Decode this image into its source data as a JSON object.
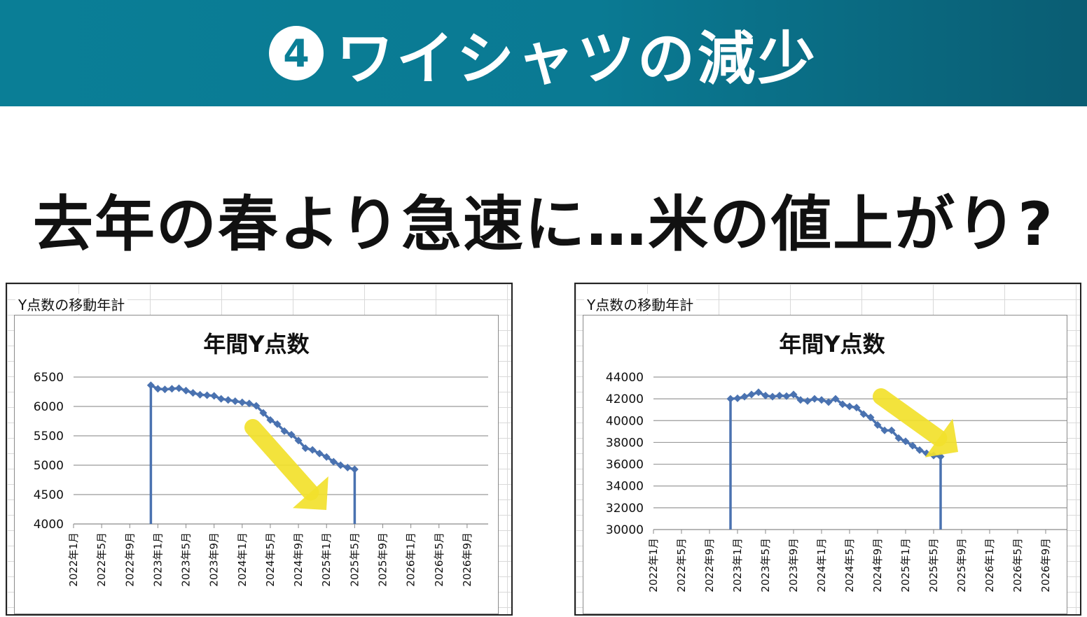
{
  "banner": {
    "number": "4",
    "title": "ワイシャツの減少"
  },
  "headline": "去年の春より急速に…米の値上がり?",
  "colors": {
    "banner": "#0a7e96",
    "series": "#4a72b0",
    "arrow": "#f2e12c"
  },
  "chart_data": [
    {
      "type": "line",
      "sheet_label": "Y点数の移動年計",
      "title": "年間Y点数",
      "categories": [
        "2022年1月",
        "2022年5月",
        "2022年9月",
        "2023年1月",
        "2023年5月",
        "2023年9月",
        "2024年1月",
        "2024年5月",
        "2024年9月",
        "2025年1月",
        "2025年5月",
        "2025年9月",
        "2026年1月",
        "2026年5月",
        "2026年9月"
      ],
      "ylim": [
        4000,
        6500
      ],
      "yticks": [
        "6500",
        "6000",
        "5500",
        "5000",
        "4500",
        "4000"
      ],
      "x_month_range": [
        0,
        59
      ],
      "x": [
        11,
        12,
        13,
        14,
        15,
        16,
        17,
        18,
        19,
        20,
        21,
        22,
        23,
        24,
        25,
        26,
        27,
        28,
        29,
        30,
        31,
        32,
        33,
        34,
        35,
        36,
        37,
        38,
        39,
        40
      ],
      "values": [
        6360,
        6300,
        6290,
        6300,
        6310,
        6270,
        6230,
        6200,
        6190,
        6180,
        6130,
        6110,
        6090,
        6070,
        6050,
        6010,
        5890,
        5770,
        5700,
        5580,
        5520,
        5420,
        5290,
        5260,
        5200,
        5140,
        5060,
        5000,
        4960,
        4930
      ],
      "drop_from_month": 11,
      "drop_to_month": 40,
      "grid": true,
      "legend": "none"
    },
    {
      "type": "line",
      "sheet_label": "Y点数の移動年計",
      "title": "年間Y点数",
      "categories": [
        "2022年1月",
        "2022年5月",
        "2022年9月",
        "2023年1月",
        "2023年5月",
        "2023年9月",
        "2024年1月",
        "2024年5月",
        "2024年9月",
        "2025年1月",
        "2025年5月",
        "2025年9月",
        "2026年1月",
        "2026年5月",
        "2026年9月"
      ],
      "ylim": [
        30000,
        44000
      ],
      "yticks": [
        "44000",
        "42000",
        "40000",
        "38000",
        "36000",
        "34000",
        "32000",
        "30000"
      ],
      "x_month_range": [
        0,
        59
      ],
      "x": [
        11,
        12,
        13,
        14,
        15,
        16,
        17,
        18,
        19,
        20,
        21,
        22,
        23,
        24,
        25,
        26,
        27,
        28,
        29,
        30,
        31,
        32,
        33,
        34,
        35,
        36,
        37,
        38,
        39,
        40,
        41
      ],
      "values": [
        42000,
        42050,
        42200,
        42400,
        42600,
        42300,
        42200,
        42300,
        42250,
        42400,
        41900,
        41800,
        42000,
        41900,
        41700,
        42000,
        41500,
        41300,
        41200,
        40600,
        40300,
        39600,
        39100,
        39100,
        38400,
        38100,
        37700,
        37300,
        37000,
        36800,
        36700
      ],
      "drop_from_month": 11,
      "drop_to_month": 41,
      "grid": true,
      "legend": "none"
    }
  ]
}
